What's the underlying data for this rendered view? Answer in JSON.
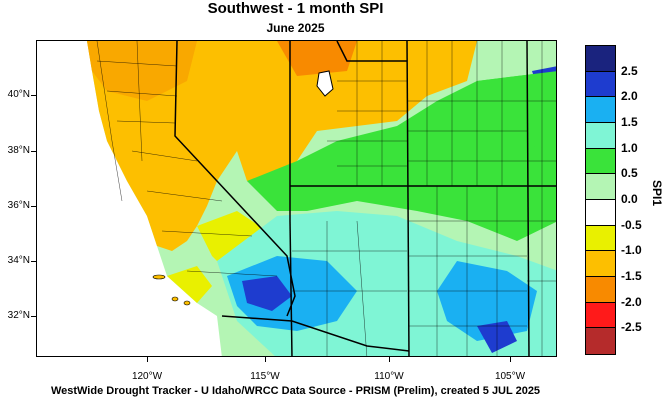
{
  "title": "Southwest - 1 month SPI",
  "subtitle": "June 2025",
  "footer": "WestWide Drought Tracker - U Idaho/WRCC  Data Source - PRISM (Prelim), created  5 JUL 2025",
  "legend": {
    "title": "SPI1",
    "labels": [
      "2.5",
      "2.0",
      "1.5",
      "1.0",
      "0.5",
      "0.0",
      "-0.5",
      "-1.0",
      "-1.5",
      "-2.0",
      "-2.5"
    ],
    "colors": [
      "#1a237e",
      "#1e3ccf",
      "#1ab0f2",
      "#7ff5d5",
      "#3ae33a",
      "#b4f5b4",
      "#ffffff",
      "#e9f000",
      "#fdbf00",
      "#f88a00",
      "#ff1a1a",
      "#b52b2b"
    ]
  },
  "axes": {
    "lat_labels": [
      "40°N",
      "38°N",
      "36°N",
      "34°N",
      "32°N"
    ],
    "lon_labels": [
      "120°W",
      "115°W",
      "110°W",
      "105°W"
    ]
  },
  "map": {
    "region": "Southwest United States",
    "variable": "1-month Standardized Precipitation Index"
  }
}
